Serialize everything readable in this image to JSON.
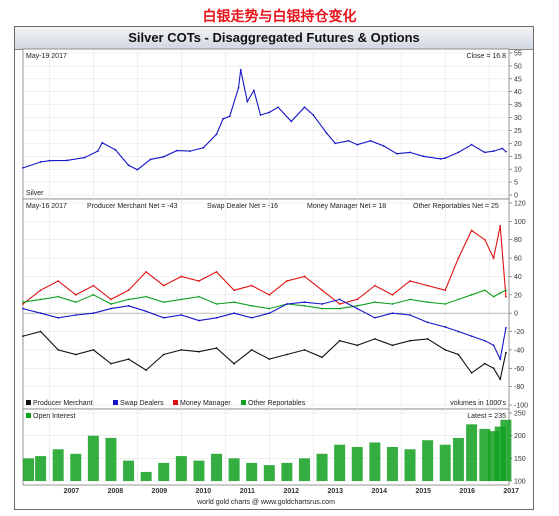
{
  "page_title": "白银走势与白银持仓变化",
  "chart_title": "Silver COTs - Disaggregated Futures & Options",
  "footer": "world gold charts @ www.goldchartsrus.com",
  "chart_data": [
    {
      "type": "line",
      "panel": "price",
      "date_label": "May-19  2017",
      "close_label": "Close = 16.8",
      "series_label": "Silver",
      "ylim": [
        0,
        55
      ],
      "yticks": [
        0,
        5,
        10,
        15,
        20,
        25,
        30,
        35,
        40,
        45,
        50,
        55
      ],
      "x_years": [
        "2007",
        "2008",
        "2009",
        "2010",
        "2011",
        "2012",
        "2013",
        "2014",
        "2015",
        "2016",
        "2017"
      ],
      "x": [
        2006.4,
        2006.8,
        2007.0,
        2007.4,
        2007.8,
        2008.1,
        2008.2,
        2008.5,
        2008.8,
        2009.0,
        2009.3,
        2009.6,
        2009.9,
        2010.2,
        2010.5,
        2010.8,
        2010.95,
        2011.1,
        2011.3,
        2011.35,
        2011.5,
        2011.65,
        2011.8,
        2012.0,
        2012.2,
        2012.5,
        2012.8,
        2013.0,
        2013.3,
        2013.5,
        2013.8,
        2014.0,
        2014.3,
        2014.6,
        2014.9,
        2015.2,
        2015.5,
        2015.9,
        2016.0,
        2016.3,
        2016.6,
        2016.9,
        2017.1,
        2017.3,
        2017.38
      ],
      "series": [
        {
          "name": "Silver",
          "color": "#1515c8",
          "values": [
            10.5,
            12.8,
            13.3,
            13.4,
            14.5,
            17.0,
            20.2,
            17.5,
            11.5,
            9.8,
            13.8,
            14.8,
            17.2,
            17.0,
            18.3,
            23.5,
            29.5,
            30.5,
            41.5,
            48.5,
            36.2,
            40.5,
            31.0,
            32.0,
            34.0,
            28.5,
            34.0,
            31.0,
            24.0,
            20.0,
            21.0,
            19.5,
            21.0,
            19.0,
            16.0,
            16.5,
            15.0,
            14.0,
            14.3,
            16.5,
            19.5,
            16.5,
            17.0,
            18.0,
            16.8
          ]
        }
      ]
    },
    {
      "type": "line",
      "panel": "cot",
      "date_label": "May-16  2017",
      "headers": [
        "Producer Merchant Net = -43",
        "Swap Dealer Net = -16",
        "Money Manager Net = 18",
        "Other Reportables Net = 25"
      ],
      "ylim": [
        -100,
        120
      ],
      "yticks": [
        -100,
        -80,
        -60,
        -40,
        -20,
        0,
        20,
        40,
        60,
        80,
        100,
        120
      ],
      "x": [
        2006.4,
        2006.8,
        2007.2,
        2007.6,
        2008.0,
        2008.4,
        2008.8,
        2009.2,
        2009.6,
        2010.0,
        2010.4,
        2010.8,
        2011.2,
        2011.6,
        2012.0,
        2012.4,
        2012.8,
        2013.2,
        2013.6,
        2014.0,
        2014.4,
        2014.8,
        2015.2,
        2015.6,
        2016.0,
        2016.3,
        2016.6,
        2016.9,
        2017.1,
        2017.25,
        2017.38
      ],
      "legend": [
        "Producer Merchant",
        "Swap Dealers",
        "Money Manager",
        "Other Reportables"
      ],
      "volumes_note": "volumes in 1000's",
      "series": [
        {
          "name": "Producer Merchant",
          "color": "#111111",
          "values": [
            -25,
            -20,
            -40,
            -45,
            -40,
            -55,
            -50,
            -62,
            -45,
            -40,
            -42,
            -38,
            -55,
            -40,
            -50,
            -45,
            -40,
            -48,
            -30,
            -35,
            -28,
            -35,
            -30,
            -28,
            -40,
            -45,
            -65,
            -55,
            -60,
            -72,
            -43
          ]
        },
        {
          "name": "Swap Dealers",
          "color": "#1515c8",
          "values": [
            5,
            0,
            -5,
            -2,
            0,
            5,
            8,
            2,
            -5,
            -2,
            -8,
            -5,
            0,
            -5,
            0,
            10,
            12,
            10,
            15,
            5,
            -5,
            0,
            -2,
            -10,
            -15,
            -20,
            -25,
            -30,
            -35,
            -50,
            -16
          ]
        },
        {
          "name": "Money Manager",
          "color": "#e01010",
          "values": [
            10,
            25,
            35,
            20,
            30,
            15,
            25,
            45,
            30,
            40,
            35,
            45,
            25,
            30,
            20,
            35,
            40,
            25,
            10,
            15,
            30,
            20,
            35,
            30,
            25,
            60,
            90,
            80,
            60,
            95,
            18
          ]
        },
        {
          "name": "Other Reportables",
          "color": "#10a020",
          "values": [
            12,
            15,
            18,
            12,
            20,
            10,
            15,
            18,
            12,
            15,
            18,
            10,
            12,
            8,
            5,
            10,
            8,
            5,
            5,
            8,
            12,
            10,
            15,
            12,
            10,
            15,
            20,
            25,
            18,
            22,
            25
          ]
        }
      ]
    },
    {
      "type": "bar",
      "panel": "open-interest",
      "legend": [
        "Open Interest"
      ],
      "latest_label": "Latest = 235",
      "ylim": [
        100,
        250
      ],
      "yticks": [
        100,
        150,
        200,
        250
      ],
      "x": [
        2006.4,
        2006.8,
        2007.2,
        2007.6,
        2008.0,
        2008.4,
        2008.8,
        2009.2,
        2009.6,
        2010.0,
        2010.4,
        2010.8,
        2011.2,
        2011.6,
        2012.0,
        2012.4,
        2012.8,
        2013.2,
        2013.6,
        2014.0,
        2014.4,
        2014.8,
        2015.2,
        2015.6,
        2016.0,
        2016.3,
        2016.6,
        2016.9,
        2017.1,
        2017.25,
        2017.38
      ],
      "series": [
        {
          "name": "Open Interest",
          "color": "#10a020",
          "values": [
            150,
            155,
            170,
            160,
            200,
            195,
            145,
            120,
            140,
            155,
            145,
            160,
            150,
            140,
            135,
            140,
            150,
            160,
            180,
            175,
            185,
            175,
            170,
            190,
            180,
            195,
            225,
            215,
            210,
            220,
            235
          ]
        }
      ]
    }
  ]
}
